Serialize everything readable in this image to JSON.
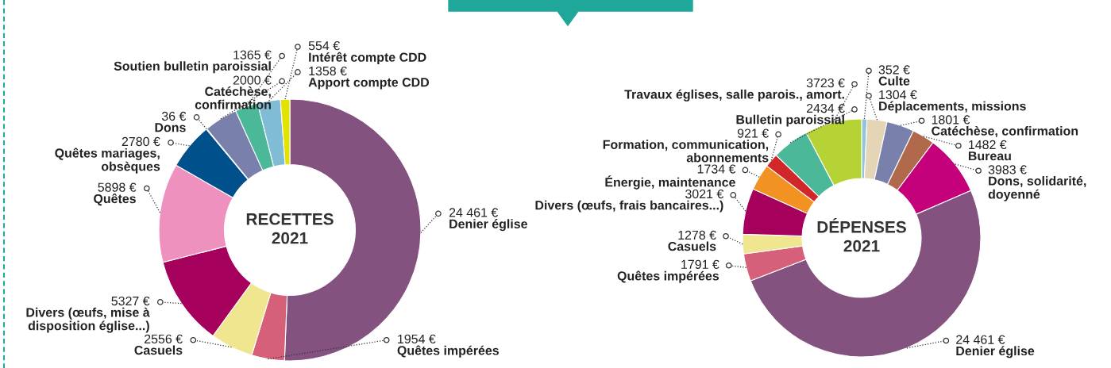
{
  "chart_data": [
    {
      "type": "donut",
      "title": "RECETTES\n2021",
      "categories": [
        "Denier église",
        "Quêtes impérées",
        "Casuels",
        "Divers (œufs, mise à\ndisposition église...)",
        "Quêtes",
        "Quêtes mariages,\nobsèques",
        "Dons",
        "Catéchèse,\nconfirmation",
        "Soutien bulletin paroissial",
        "Apport compte CDD",
        "Intérêt compte CDD"
      ],
      "values": [
        24461,
        1954,
        2556,
        5327,
        5898,
        2780,
        36,
        2000,
        1365,
        1358,
        554
      ],
      "value_labels": [
        "24 461 €",
        "1954 €",
        "2556 €",
        "5327 €",
        "5898 €",
        "2780 €",
        "36 €",
        "2000 €",
        "1365 €",
        "1358 €",
        "554 €"
      ],
      "colors": [
        "#84527e",
        "#d6607a",
        "#f0e68f",
        "#a5005c",
        "#ef91bf",
        "#00508c",
        "#c4006f",
        "#7a80ac",
        "#4cb89a",
        "#80bcd6",
        "#e3e300"
      ]
    },
    {
      "type": "donut",
      "title": "DÉPENSES\n2021",
      "categories": [
        "Culte",
        "Déplacements, missions",
        "Catéchèse, confirmation",
        "Bureau",
        "Dons, solidarité,\ndoyenné",
        "Denier église",
        "Quêtes impérées",
        "Casuels",
        "Divers (œufs, frais bancaires...)",
        "Énergie, maintenance",
        "Formation, communication,\nabonnements",
        "Bulletin paroissial",
        "Travaux églises, salle parois., amort."
      ],
      "values": [
        352,
        1304,
        1801,
        1482,
        3983,
        24461,
        1791,
        1278,
        3021,
        1734,
        921,
        2434,
        3723
      ],
      "value_labels": [
        "352 €",
        "1304 €",
        "1801 €",
        "1482 €",
        "3983 €",
        "24 461 €",
        "1791 €",
        "1278 €",
        "3021 €",
        "1734 €",
        "921 €",
        "2434 €",
        "3723 €"
      ],
      "colors": [
        "#8ec4de",
        "#e3d5b5",
        "#7a80ac",
        "#b0694a",
        "#c4007a",
        "#84527e",
        "#d6607a",
        "#f0e68f",
        "#a5005c",
        "#f29222",
        "#d1262a",
        "#4cb89a",
        "#b5d334"
      ]
    }
  ]
}
